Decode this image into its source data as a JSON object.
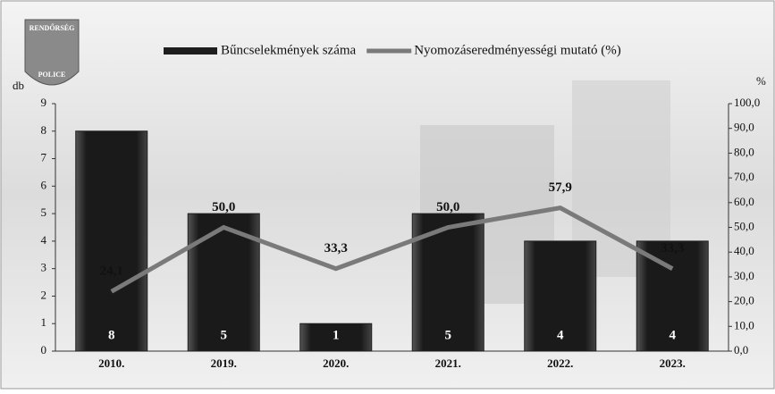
{
  "logo": {
    "top": "RENDŐRSÉG",
    "bottom": "POLICE"
  },
  "chart_data": {
    "type": "bar",
    "categories": [
      "2010.",
      "2019.",
      "2020.",
      "2021.",
      "2022.",
      "2023."
    ],
    "series": [
      {
        "name": "Bűncselekmények száma",
        "type": "bar",
        "color": "#1e1e1e",
        "values": [
          8,
          5,
          1,
          5,
          4,
          4
        ]
      },
      {
        "name": "Nyomozáseredményességi mutató (%)",
        "type": "line",
        "axis": "y2",
        "color": "#7a7a7a",
        "values": [
          24.1,
          50.0,
          33.3,
          50.0,
          57.9,
          33.3
        ],
        "value_labels": [
          "24,1",
          "50,0",
          "33,3",
          "50,0",
          "57,9",
          "33,3"
        ]
      }
    ],
    "ylabel": "db",
    "y2label": "%",
    "ylim": [
      0,
      9
    ],
    "yticks": [
      0,
      1,
      2,
      3,
      4,
      5,
      6,
      7,
      8,
      9
    ],
    "y2lim": [
      0,
      100
    ],
    "y2ticks": [
      {
        "value": 0,
        "label": "0,0"
      },
      {
        "value": 10,
        "label": "10,0"
      },
      {
        "value": 20,
        "label": "20,0"
      },
      {
        "value": 30,
        "label": "30,0"
      },
      {
        "value": 40,
        "label": "40,0"
      },
      {
        "value": 50,
        "label": "50,0"
      },
      {
        "value": 60,
        "label": "60,0"
      },
      {
        "value": 70,
        "label": "70,0"
      },
      {
        "value": 80,
        "label": "80,0"
      },
      {
        "value": 90,
        "label": "90,0"
      },
      {
        "value": 100,
        "label": "100,0"
      }
    ],
    "legend": "top"
  }
}
